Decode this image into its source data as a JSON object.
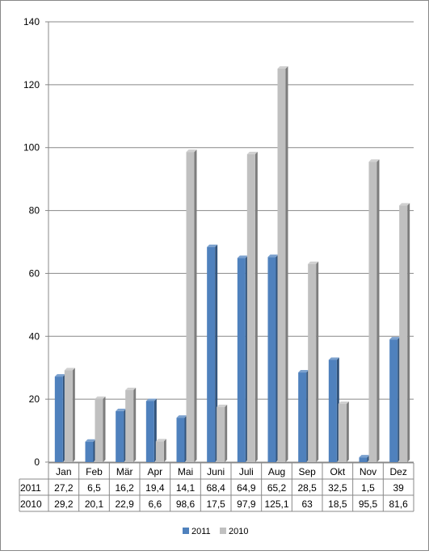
{
  "chart_data": {
    "type": "bar",
    "title": "",
    "xlabel": "",
    "ylabel": "",
    "categories": [
      "Jan",
      "Feb",
      "Mär",
      "Apr",
      "Mai",
      "Juni",
      "Juli",
      "Aug",
      "Sep",
      "Okt",
      "Nov",
      "Dez"
    ],
    "series": [
      {
        "name": "2011",
        "color": "#4f81bd",
        "values": [
          27.2,
          6.5,
          16.2,
          19.4,
          14.1,
          68.4,
          64.9,
          65.2,
          28.5,
          32.5,
          1.5,
          39
        ],
        "labels": [
          "27,2",
          "6,5",
          "16,2",
          "19,4",
          "14,1",
          "68,4",
          "64,9",
          "65,2",
          "28,5",
          "32,5",
          "1,5",
          "39"
        ]
      },
      {
        "name": "2010",
        "color": "#c0c0c0",
        "values": [
          29.2,
          20.1,
          22.9,
          6.6,
          98.6,
          17.5,
          97.9,
          125.1,
          63,
          18.5,
          95.5,
          81.6
        ],
        "labels": [
          "29,2",
          "20,1",
          "22,9",
          "6,6",
          "98,6",
          "17,5",
          "97,9",
          "125,1",
          "63",
          "18,5",
          "95,5",
          "81,6"
        ]
      }
    ],
    "ylim": [
      0,
      140
    ],
    "yticks": [
      "0",
      "20",
      "40",
      "60",
      "80",
      "100",
      "120",
      "140"
    ],
    "grid": true,
    "legend_position": "bottom",
    "data_table": true
  }
}
